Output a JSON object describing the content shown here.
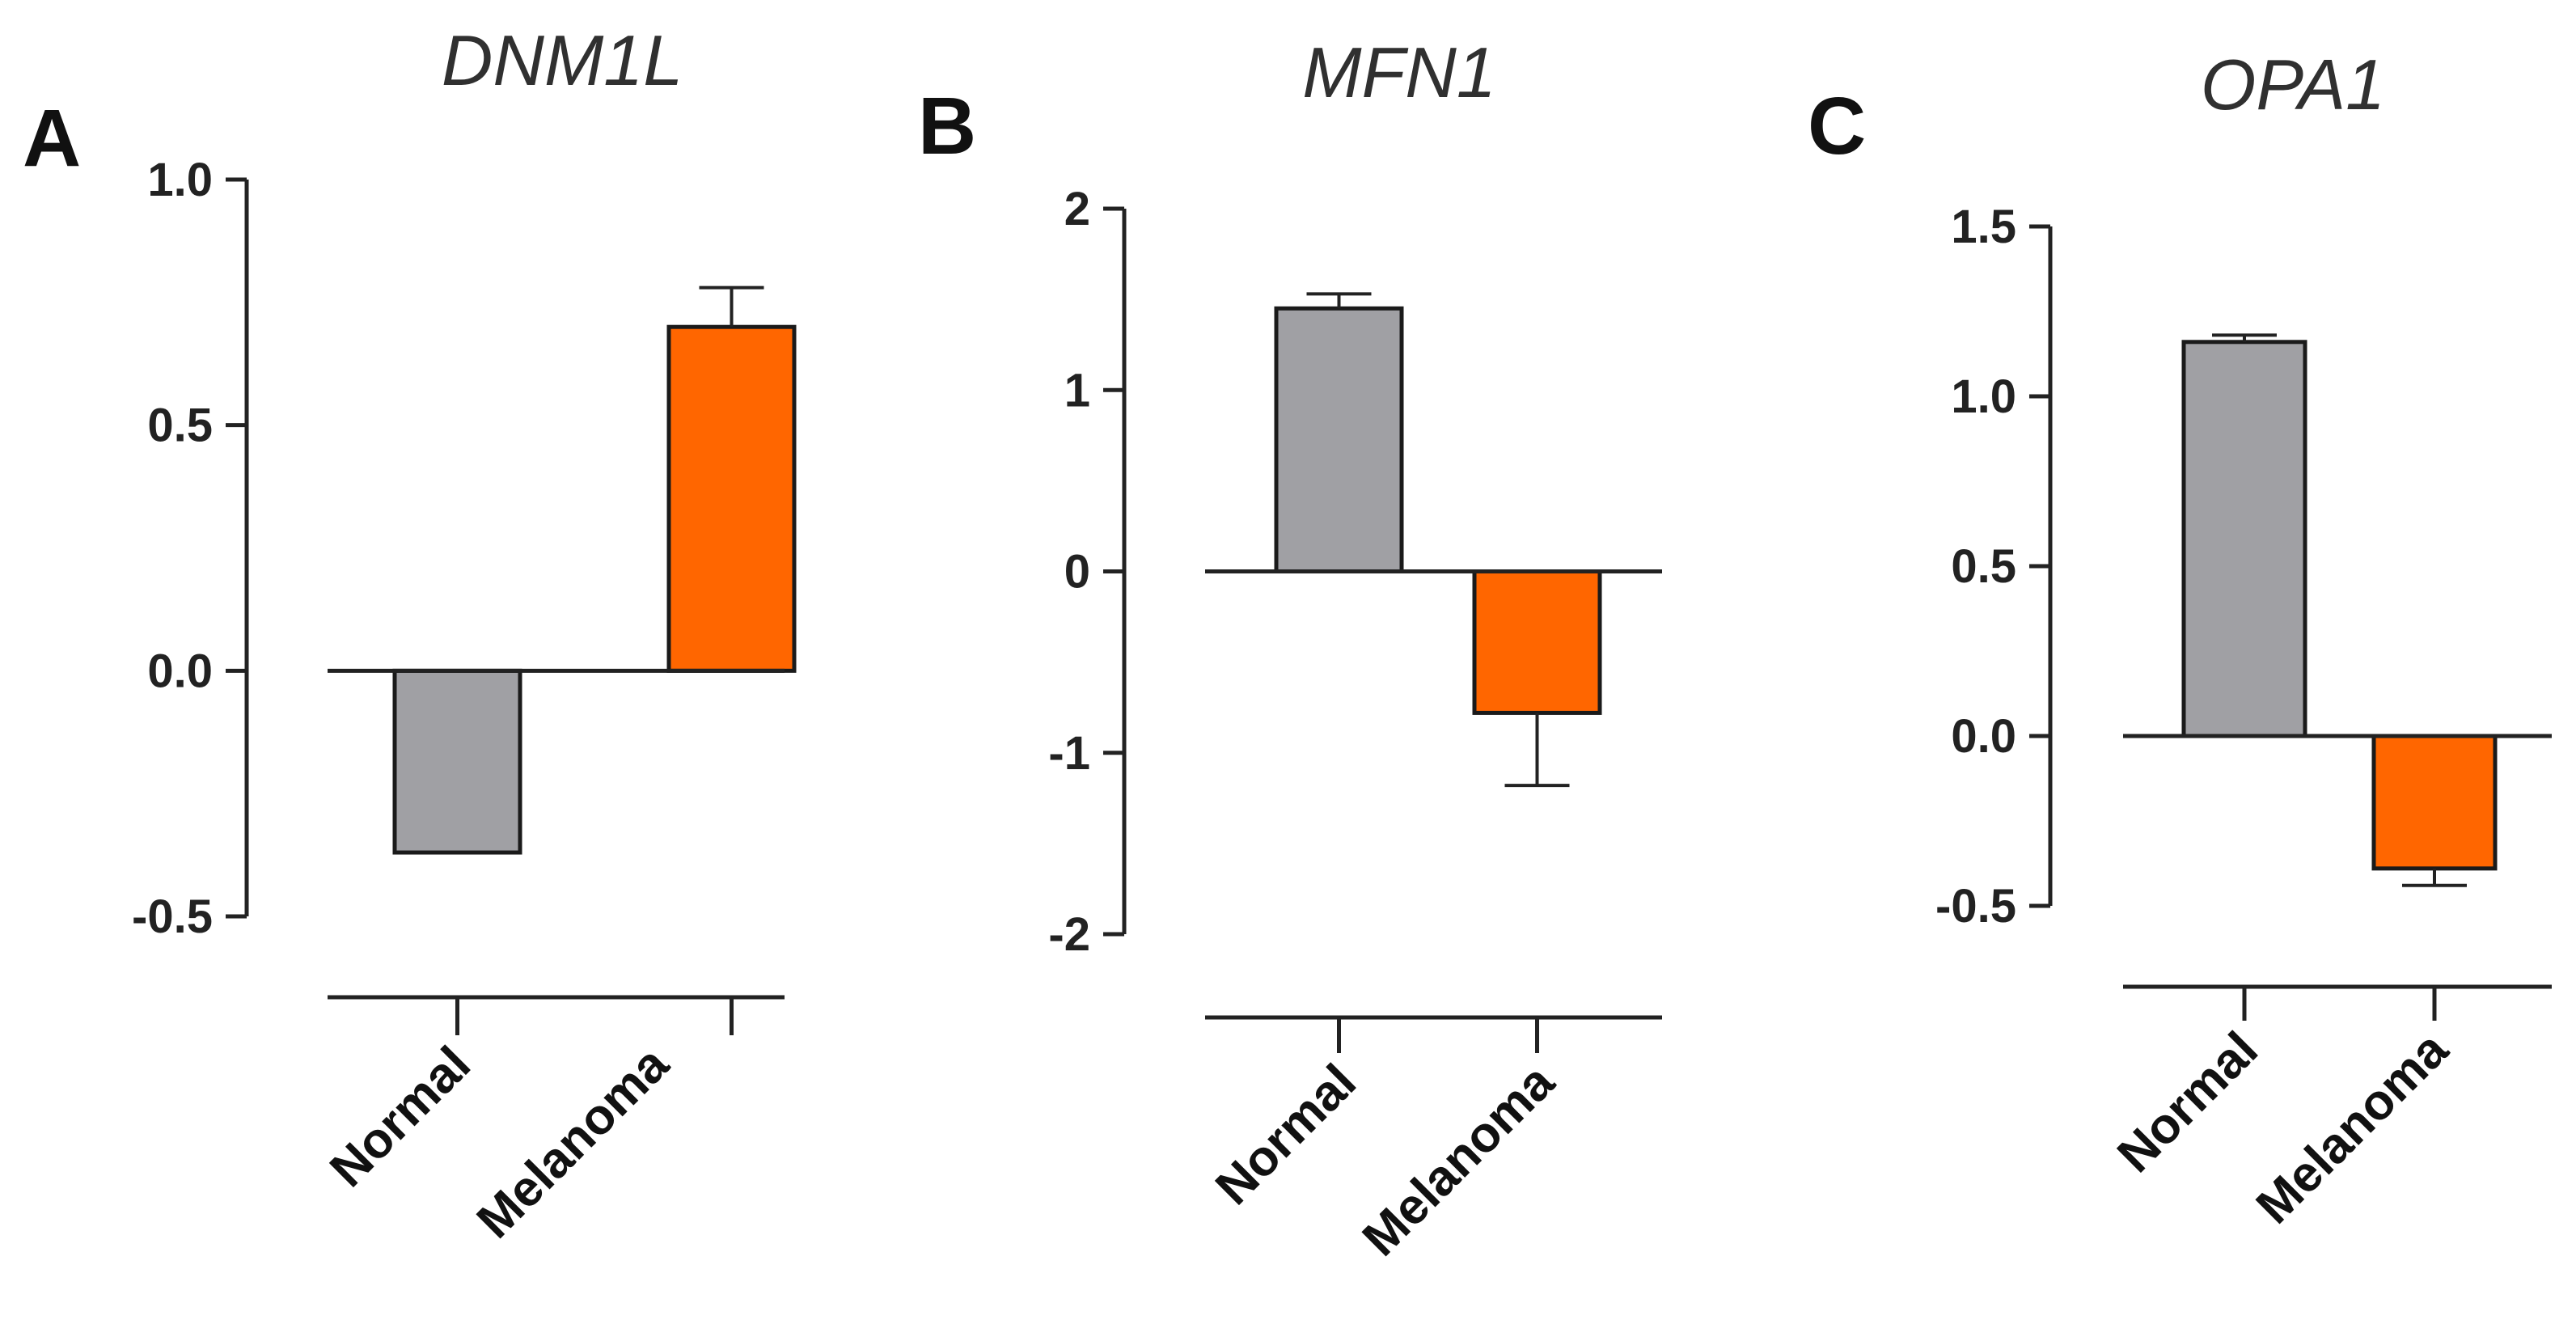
{
  "chart_data": [
    {
      "type": "bar",
      "panel_label": "A",
      "title": "DNM1L",
      "categories": [
        "Normal",
        "Melanoma"
      ],
      "values": [
        -0.37,
        0.7
      ],
      "errors": [
        0.0,
        0.08
      ],
      "colors": [
        "#a0a0a4",
        "#ff6600"
      ],
      "ylim": [
        -0.5,
        1.0
      ],
      "yticks": [
        -0.5,
        0.0,
        0.5,
        1.0
      ],
      "ytick_labels": [
        "-0.5",
        "0.0",
        "0.5",
        "1.0"
      ],
      "xlabel": "",
      "ylabel": ""
    },
    {
      "type": "bar",
      "panel_label": "B",
      "title": "MFN1",
      "categories": [
        "Normal",
        "Melanoma"
      ],
      "values": [
        1.45,
        -0.78
      ],
      "errors": [
        0.08,
        0.4
      ],
      "colors": [
        "#a0a0a4",
        "#ff6600"
      ],
      "ylim": [
        -2,
        2
      ],
      "yticks": [
        -2,
        -1,
        0,
        1,
        2
      ],
      "ytick_labels": [
        "-2",
        "-1",
        "0",
        "1",
        "2"
      ],
      "xlabel": "",
      "ylabel": ""
    },
    {
      "type": "bar",
      "panel_label": "C",
      "title": "OPA1",
      "categories": [
        "Normal",
        "Melanoma"
      ],
      "values": [
        1.16,
        -0.39
      ],
      "errors": [
        0.02,
        0.05
      ],
      "colors": [
        "#a0a0a4",
        "#ff6600"
      ],
      "ylim": [
        -0.5,
        1.5
      ],
      "yticks": [
        -0.5,
        0.0,
        0.5,
        1.0,
        1.5
      ],
      "ytick_labels": [
        "-0.5",
        "0.0",
        "0.5",
        "1.0",
        "1.5"
      ],
      "xlabel": "",
      "ylabel": ""
    }
  ]
}
